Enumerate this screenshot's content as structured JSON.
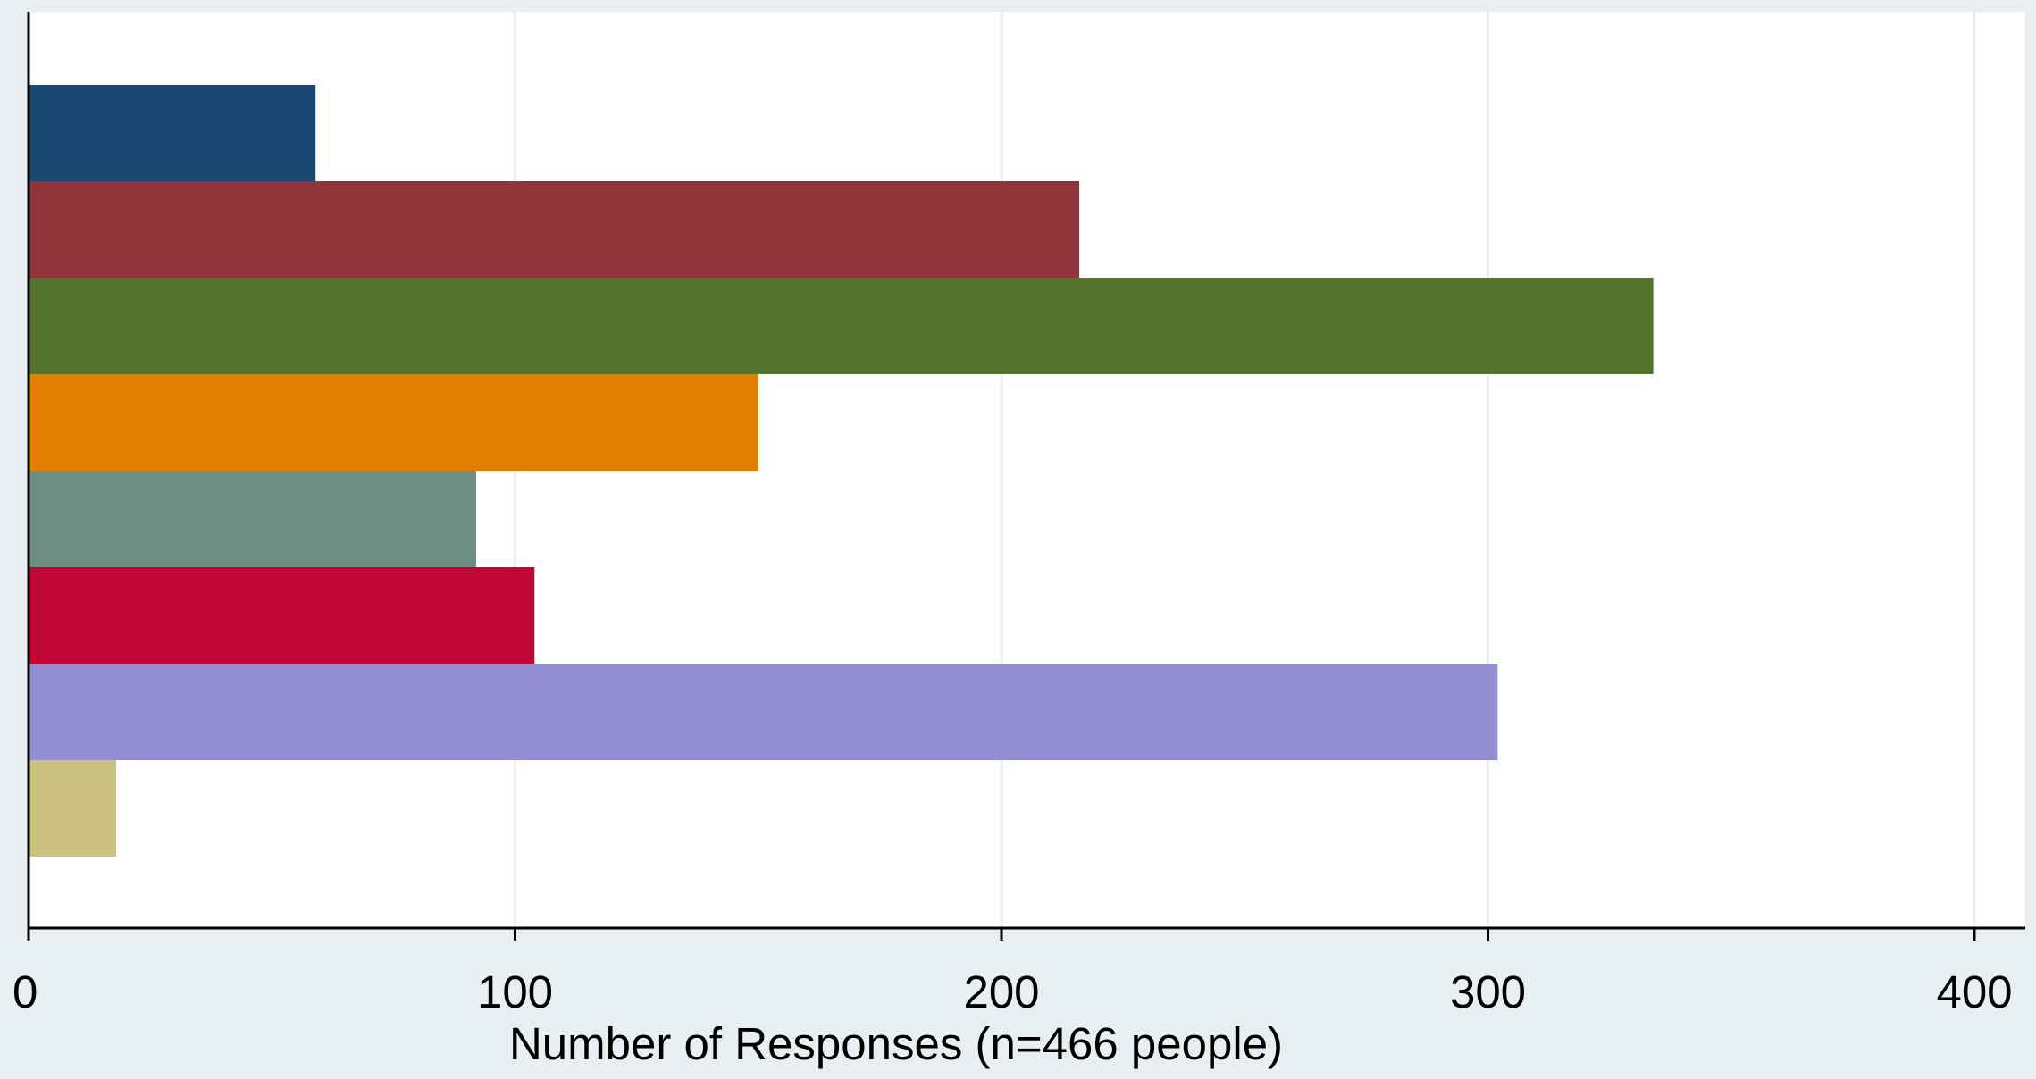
{
  "chart_data": {
    "type": "bar",
    "orientation": "horizontal",
    "title": "",
    "xlabel": "Number of Responses (n=466 people)",
    "ylabel": "",
    "xlim": [
      0,
      400
    ],
    "x_ticks": [
      0,
      100,
      200,
      300,
      400
    ],
    "x_tick_labels": [
      "0",
      "100",
      "200",
      "300",
      "400"
    ],
    "grid": "vertical",
    "legend": "none",
    "values": [
      59,
      216,
      334,
      150,
      92,
      104,
      302,
      18
    ],
    "colors": [
      "#1a476f",
      "#90353b",
      "#55752f",
      "#e37e00",
      "#6e8e84",
      "#c10534",
      "#938dd2",
      "#cac27e"
    ]
  }
}
